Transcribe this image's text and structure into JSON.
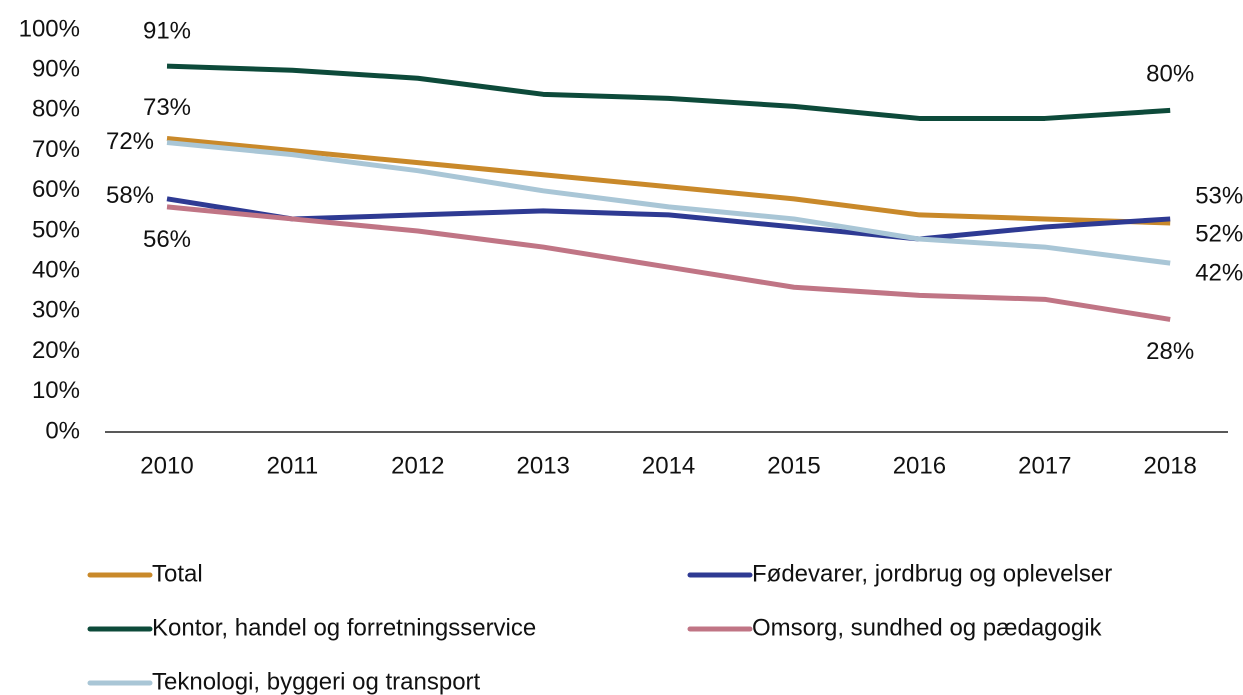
{
  "chart_data": {
    "type": "line",
    "categories": [
      "2010",
      "2011",
      "2012",
      "2013",
      "2014",
      "2015",
      "2016",
      "2017",
      "2018"
    ],
    "ylim": [
      0,
      100
    ],
    "yticks": [
      {
        "value": 0,
        "label": "0%"
      },
      {
        "value": 10,
        "label": "10%"
      },
      {
        "value": 20,
        "label": "20%"
      },
      {
        "value": 30,
        "label": "30%"
      },
      {
        "value": 40,
        "label": "40%"
      },
      {
        "value": 50,
        "label": "50%"
      },
      {
        "value": 60,
        "label": "60%"
      },
      {
        "value": 70,
        "label": "70%"
      },
      {
        "value": 80,
        "label": "80%"
      },
      {
        "value": 90,
        "label": "90%"
      },
      {
        "value": 100,
        "label": "100%"
      }
    ],
    "grid": false,
    "legend": "bottom",
    "series": [
      {
        "name": "Total",
        "color": "#c9892a",
        "values": [
          73,
          70,
          67,
          64,
          61,
          58,
          54,
          53,
          52
        ],
        "value_labels": [
          "73%",
          null,
          null,
          null,
          null,
          null,
          null,
          null,
          "52%"
        ]
      },
      {
        "name": "Fødevarer, jordbrug og oplevelser",
        "color": "#2e3a93",
        "values": [
          58,
          53,
          54,
          55,
          54,
          51,
          48,
          51,
          53
        ],
        "value_labels": [
          "58%",
          null,
          null,
          null,
          null,
          null,
          null,
          null,
          "53%"
        ]
      },
      {
        "name": "Kontor, handel og forretningsservice",
        "color": "#0d4a3a",
        "values": [
          91,
          90,
          88,
          84,
          83,
          81,
          78,
          78,
          80
        ],
        "value_labels": [
          "91%",
          null,
          null,
          null,
          null,
          null,
          null,
          null,
          "80%"
        ]
      },
      {
        "name": "Omsorg, sundhed og pædagogik",
        "color": "#c07585",
        "values": [
          56,
          53,
          50,
          46,
          41,
          36,
          34,
          33,
          28
        ],
        "value_labels": [
          "56%",
          null,
          null,
          null,
          null,
          null,
          null,
          null,
          "28%"
        ]
      },
      {
        "name": "Teknologi, byggeri og transport",
        "color": "#a9c6d6",
        "values": [
          72,
          69,
          65,
          60,
          56,
          53,
          48,
          46,
          42
        ],
        "value_labels": [
          "72%",
          null,
          null,
          null,
          null,
          null,
          null,
          null,
          "42%"
        ]
      }
    ]
  }
}
